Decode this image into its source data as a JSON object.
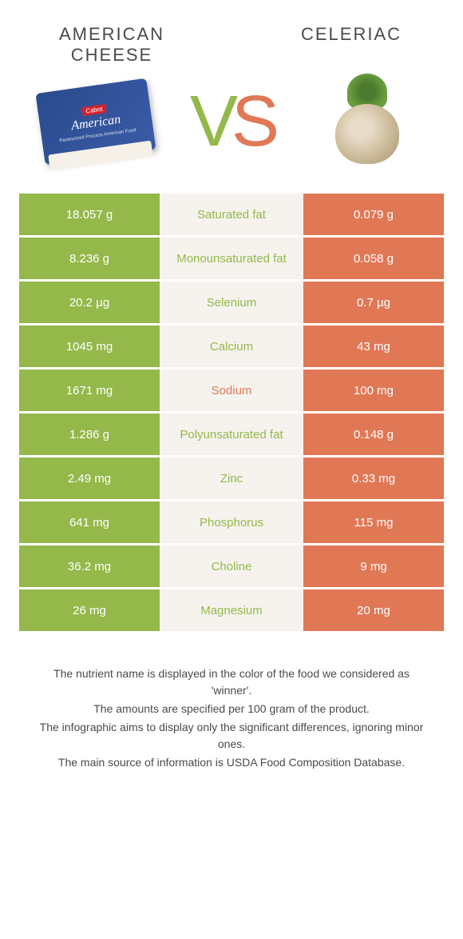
{
  "header": {
    "left_title": "American cheese",
    "right_title": "Celeriac",
    "vs_v": "V",
    "vs_s": "S"
  },
  "colors": {
    "green": "#94b84a",
    "orange": "#e07856",
    "mid_bg": "#f6f3ee",
    "text": "#4a4a4a"
  },
  "cheese_labels": {
    "brand": "Cabot",
    "name": "American",
    "sub": "Pasteurized Process American Food"
  },
  "rows": [
    {
      "left": "18.057 g",
      "label": "Saturated fat",
      "right": "0.079 g",
      "winner": "left"
    },
    {
      "left": "8.236 g",
      "label": "Monounsaturated fat",
      "right": "0.058 g",
      "winner": "left"
    },
    {
      "left": "20.2 µg",
      "label": "Selenium",
      "right": "0.7 µg",
      "winner": "left"
    },
    {
      "left": "1045 mg",
      "label": "Calcium",
      "right": "43 mg",
      "winner": "left"
    },
    {
      "left": "1671 mg",
      "label": "Sodium",
      "right": "100 mg",
      "winner": "right"
    },
    {
      "left": "1.286 g",
      "label": "Polyunsaturated fat",
      "right": "0.148 g",
      "winner": "left"
    },
    {
      "left": "2.49 mg",
      "label": "Zinc",
      "right": "0.33 mg",
      "winner": "left"
    },
    {
      "left": "641 mg",
      "label": "Phosphorus",
      "right": "115 mg",
      "winner": "left"
    },
    {
      "left": "36.2 mg",
      "label": "Choline",
      "right": "9 mg",
      "winner": "left"
    },
    {
      "left": "26 mg",
      "label": "Magnesium",
      "right": "20 mg",
      "winner": "left"
    }
  ],
  "footer": {
    "line1": "The nutrient name is displayed in the color of the food we considered as 'winner'.",
    "line2": "The amounts are specified per 100 gram of the product.",
    "line3": "The infographic aims to display only the significant differences, ignoring minor ones.",
    "line4": "The main source of information is USDA Food Composition Database."
  }
}
